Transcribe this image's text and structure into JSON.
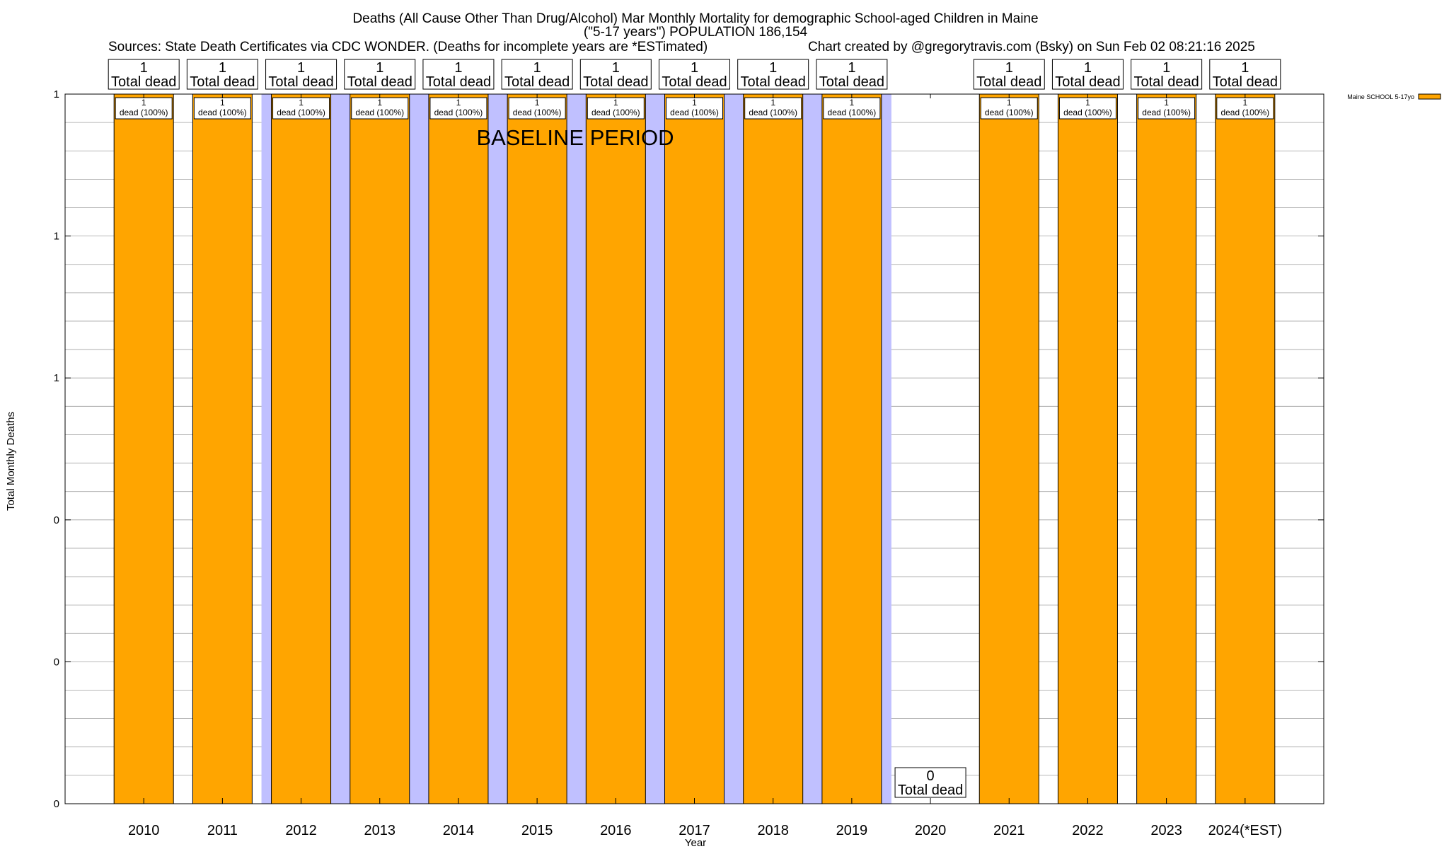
{
  "colors": {
    "bar": "#FFA500",
    "bar_stroke": "#000000",
    "baseline_band": "#C0C0FF",
    "grid": "#A0A0A0"
  },
  "chart_data": {
    "type": "bar",
    "title_lines": [
      "Deaths (All Cause Other Than Drug/Alcohol) Mar Monthly Mortality for demographic School-aged Children in Maine",
      "(\"5-17 years\") POPULATION 186,154"
    ],
    "sources": "Sources: State Death Certificates via CDC WONDER. (Deaths for incomplete years are *ESTimated)",
    "credit": "Chart created by @gregorytravis.com (Bsky) on Sun Feb 02 08:21:16 2025",
    "xlabel": "Year",
    "ylabel": "Total Monthly Deaths",
    "ylim": [
      0,
      1
    ],
    "y_tick_labels": [
      "0",
      "0",
      "0",
      "1",
      "1",
      "1"
    ],
    "categories": [
      "2010",
      "2011",
      "2012",
      "2013",
      "2014",
      "2015",
      "2016",
      "2017",
      "2018",
      "2019",
      "2020",
      "2021",
      "2022",
      "2023",
      "2024(*EST)"
    ],
    "series": [
      {
        "name": "Maine SCHOOL 5-17yo",
        "values": [
          1,
          1,
          1,
          1,
          1,
          1,
          1,
          1,
          1,
          1,
          0,
          1,
          1,
          1,
          1
        ]
      }
    ],
    "total_counts": [
      "1",
      "1",
      "1",
      "1",
      "1",
      "1",
      "1",
      "1",
      "1",
      "1",
      "0",
      "1",
      "1",
      "1",
      "1"
    ],
    "total_suffix": "Total dead",
    "pct_counts": [
      "1",
      "1",
      "1",
      "1",
      "1",
      "1",
      "1",
      "1",
      "1",
      "1",
      "",
      "1",
      "1",
      "1",
      "1"
    ],
    "pct_text": "dead (100%)",
    "baseline_label": "BASELINE PERIOD",
    "baseline_range": [
      "2012",
      "2019"
    ],
    "legend": {
      "entries": [
        "Maine SCHOOL 5-17yo"
      ],
      "position": "top-right"
    },
    "grid": true
  }
}
